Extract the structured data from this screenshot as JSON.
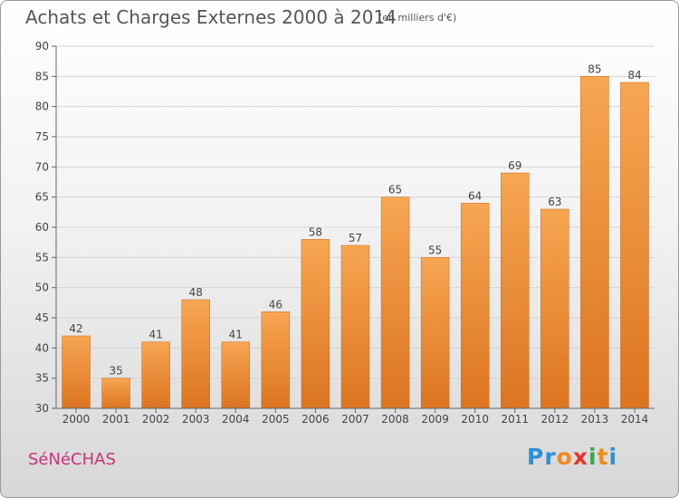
{
  "header": {
    "title": "Achats et Charges Externes 2000 à 2014",
    "unit": "(en milliers d'€)"
  },
  "footer": {
    "commune": "SéNéCHAS",
    "brand": "Proxiti"
  },
  "colors": {
    "bar_light": "#f7a652",
    "bar_dark": "#dc7420",
    "commune": "#c8327a",
    "brand_letters": [
      "#2e8fd9",
      "#2e8fd9",
      "#f08a1d",
      "#e8322e",
      "#34a853",
      "#f08a1d",
      "#2e8fd9"
    ]
  },
  "chart_data": {
    "type": "bar",
    "categories": [
      "2000",
      "2001",
      "2002",
      "2003",
      "2004",
      "2005",
      "2006",
      "2007",
      "2008",
      "2009",
      "2010",
      "2011",
      "2012",
      "2013",
      "2014"
    ],
    "values": [
      42,
      35,
      41,
      48,
      41,
      46,
      58,
      57,
      65,
      55,
      64,
      69,
      63,
      85,
      84
    ],
    "ylim": [
      30,
      90
    ],
    "yticks": [
      30,
      35,
      40,
      45,
      50,
      55,
      60,
      65,
      70,
      75,
      80,
      85,
      90
    ],
    "grid": true,
    "data_labels": true
  }
}
